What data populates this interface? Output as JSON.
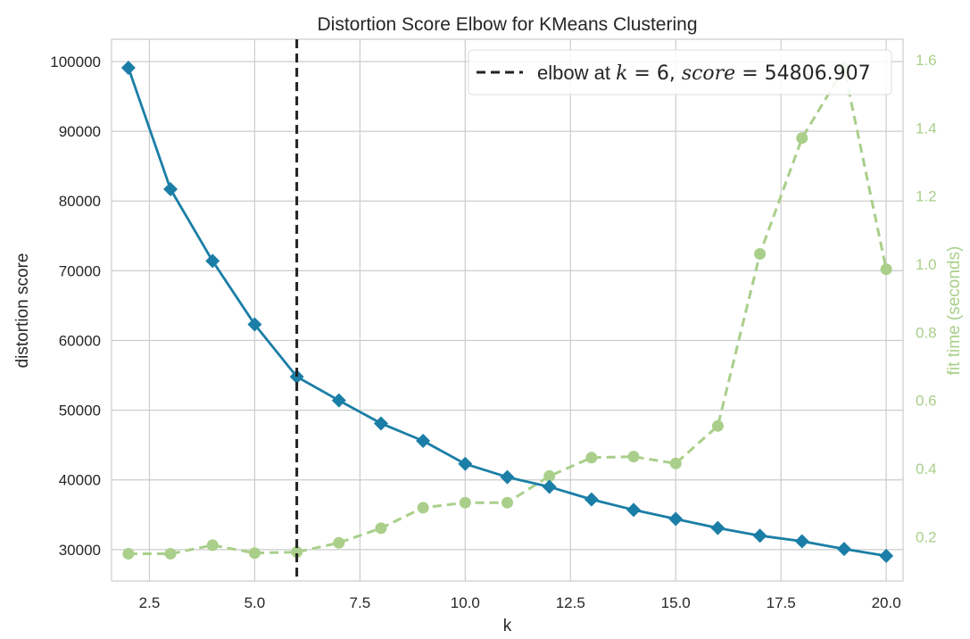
{
  "chart_data": {
    "type": "line",
    "title": "Distortion Score Elbow for KMeans Clustering",
    "xlabel": "k",
    "ylabel": "distortion score",
    "y2label": "fit time (seconds)",
    "xlim": [
      1.6,
      20.4
    ],
    "ylim": [
      25500,
      103200
    ],
    "y2lim": [
      0.07,
      1.66
    ],
    "x_ticks": [
      2.5,
      5.0,
      7.5,
      10.0,
      12.5,
      15.0,
      17.5,
      20.0
    ],
    "x_tick_labels": [
      "2.5",
      "5.0",
      "7.5",
      "10.0",
      "12.5",
      "15.0",
      "17.5",
      "20.0"
    ],
    "y_ticks": [
      30000,
      40000,
      50000,
      60000,
      70000,
      80000,
      90000,
      100000
    ],
    "y_tick_labels": [
      "30000",
      "40000",
      "50000",
      "60000",
      "70000",
      "80000",
      "90000",
      "100000"
    ],
    "y2_ticks": [
      0.2,
      0.4,
      0.6,
      0.8,
      1.0,
      1.2,
      1.4,
      1.6
    ],
    "y2_tick_labels": [
      "0.2",
      "0.4",
      "0.6",
      "0.8",
      "1.0",
      "1.2",
      "1.4",
      "1.6"
    ],
    "grid": true,
    "legend_position": "top-right",
    "x": [
      2,
      3,
      4,
      5,
      6,
      7,
      8,
      9,
      10,
      11,
      12,
      13,
      14,
      15,
      16,
      17,
      18,
      19,
      20
    ],
    "series": [
      {
        "name": "distortion score",
        "axis": "left",
        "color": "#1b7ea6",
        "style": "solid",
        "marker": "diamond",
        "values": [
          99100,
          81700,
          71400,
          62300,
          54800,
          51400,
          48100,
          45600,
          42300,
          40400,
          39000,
          37200,
          35700,
          34400,
          33100,
          32000,
          31200,
          30100,
          29100
        ]
      },
      {
        "name": "fit time (seconds)",
        "axis": "right",
        "color": "#a9cf8a",
        "style": "dashed",
        "marker": "circle",
        "values": [
          0.15,
          0.15,
          0.175,
          0.152,
          0.155,
          0.182,
          0.225,
          0.285,
          0.3,
          0.3,
          0.378,
          0.432,
          0.435,
          0.415,
          0.525,
          1.03,
          1.37,
          1.575,
          0.985
        ]
      }
    ],
    "elbow": {
      "k": 6,
      "score": 54806.907,
      "color": "#222222",
      "legend_prefix": "elbow at ",
      "legend_k_symbol": "k",
      "legend_eq_k": " = 6, ",
      "legend_score_symbol": "score",
      "legend_eq_score": " = 54806.907"
    }
  }
}
